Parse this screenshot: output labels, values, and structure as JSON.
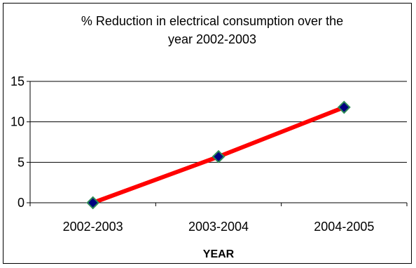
{
  "chart_data": {
    "type": "line",
    "title_lines": [
      "% Reduction in electrical consumption over the",
      "year 2002-2003"
    ],
    "xlabel": "YEAR",
    "ylabel": "",
    "categories": [
      "2002-2003",
      "2003-2004",
      "2004-2005"
    ],
    "series": [
      {
        "values": [
          0,
          5.7,
          11.8
        ]
      }
    ],
    "ylim": [
      0,
      15
    ],
    "yticks": [
      0,
      5,
      10,
      15
    ],
    "grid": true,
    "legend": "none",
    "colors": {
      "line": "#ff0000",
      "marker_fill": "#000080",
      "marker_edge": "#2e8b57",
      "grid": "#000000",
      "plot_background": "#ffffff"
    }
  }
}
